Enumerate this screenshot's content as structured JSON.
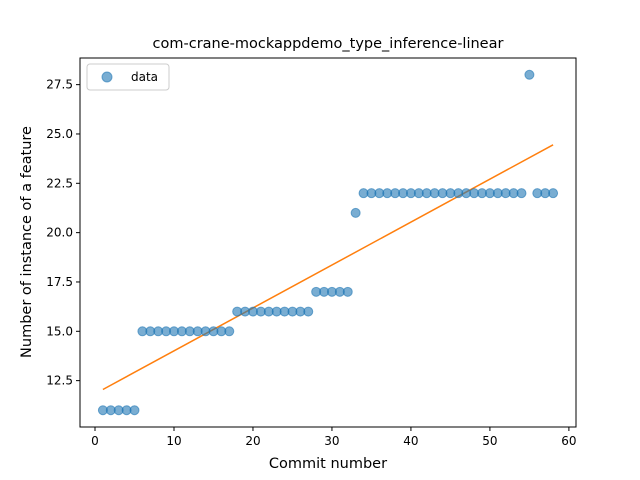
{
  "chart_data": {
    "type": "scatter",
    "title": "com-crane-mockappdemo_type_inference-linear",
    "xlabel": "Commit number",
    "ylabel": "Number of instance of a feature",
    "xlim": [
      -1.9,
      60.9
    ],
    "ylim": [
      10.15,
      28.85
    ],
    "xticks": [
      0,
      10,
      20,
      30,
      40,
      50,
      60
    ],
    "yticks": [
      12.5,
      15.0,
      17.5,
      20.0,
      22.5,
      25.0,
      27.5
    ],
    "xtick_labels": [
      "0",
      "10",
      "20",
      "30",
      "40",
      "50",
      "60"
    ],
    "ytick_labels": [
      "12.5",
      "15.0",
      "17.5",
      "20.0",
      "22.5",
      "25.0",
      "27.5"
    ],
    "legend_position": "upper-left",
    "grid": false,
    "colors": {
      "data": "#1f77b4",
      "fit": "#ff7f0e"
    },
    "series": [
      {
        "name": "data",
        "kind": "scatter",
        "x": [
          1,
          2,
          3,
          4,
          5,
          6,
          7,
          8,
          9,
          10,
          11,
          12,
          13,
          14,
          15,
          16,
          17,
          18,
          19,
          20,
          21,
          22,
          23,
          24,
          25,
          26,
          27,
          28,
          29,
          30,
          31,
          32,
          33,
          34,
          35,
          36,
          37,
          38,
          39,
          40,
          41,
          42,
          43,
          44,
          45,
          46,
          47,
          48,
          49,
          50,
          51,
          52,
          53,
          54,
          55,
          56,
          57,
          58
        ],
        "y": [
          11,
          11,
          11,
          11,
          11,
          15,
          15,
          15,
          15,
          15,
          15,
          15,
          15,
          15,
          15,
          15,
          15,
          16,
          16,
          16,
          16,
          16,
          16,
          16,
          16,
          16,
          16,
          17,
          17,
          17,
          17,
          17,
          21,
          22,
          22,
          22,
          22,
          22,
          22,
          22,
          22,
          22,
          22,
          22,
          22,
          22,
          22,
          22,
          22,
          22,
          22,
          22,
          22,
          22,
          28,
          22,
          22,
          22
        ]
      },
      {
        "kind": "line",
        "x": [
          1,
          58
        ],
        "y": [
          12.05,
          24.45
        ]
      }
    ]
  }
}
